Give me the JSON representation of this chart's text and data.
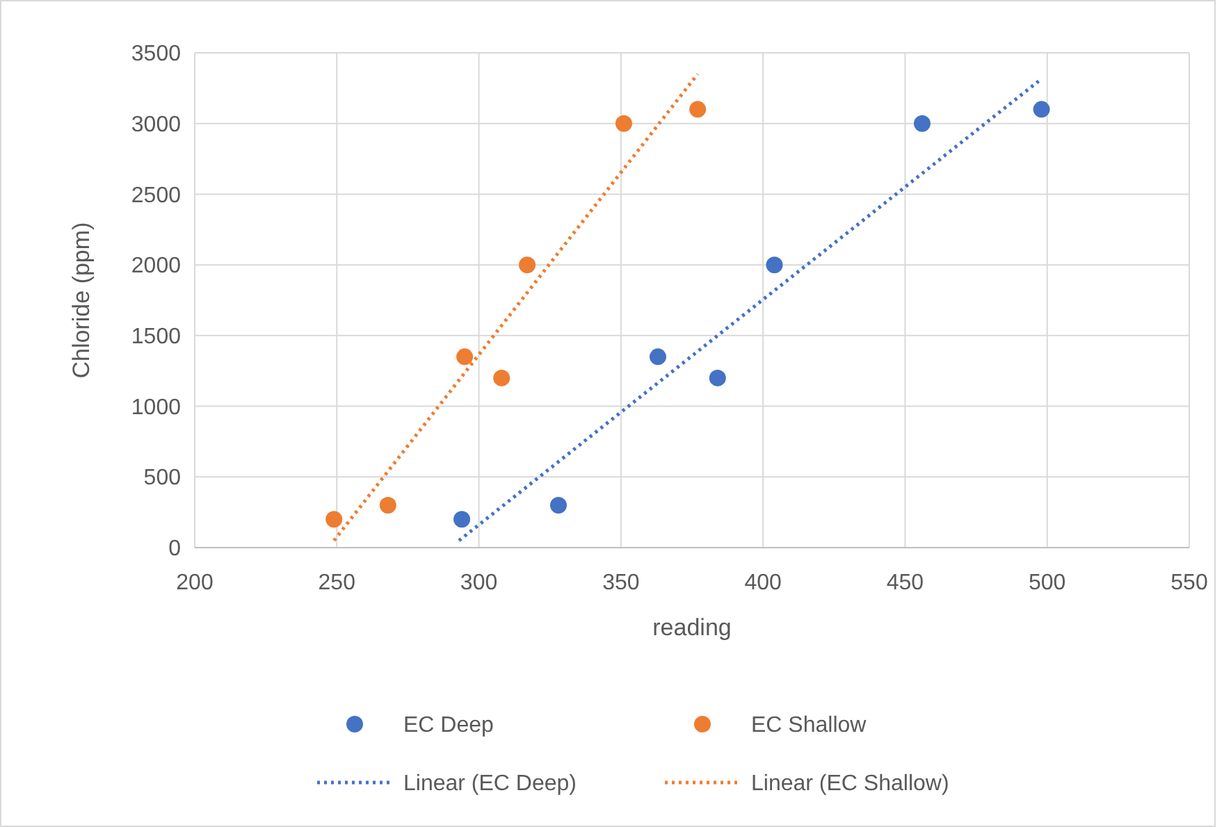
{
  "chart_data": {
    "type": "scatter",
    "xlabel": "reading",
    "ylabel": "Chloride (ppm)",
    "xlim": [
      200,
      550
    ],
    "ylim": [
      0,
      3500
    ],
    "xticks": [
      200,
      250,
      300,
      350,
      400,
      450,
      500,
      550
    ],
    "yticks": [
      0,
      500,
      1000,
      1500,
      2000,
      2500,
      3000,
      3500
    ],
    "grid": true,
    "legend": "bottom",
    "series": [
      {
        "name": "EC Deep",
        "marker": "circle",
        "color": "#4472c4",
        "x": [
          294,
          328,
          363,
          384,
          404,
          456,
          498
        ],
        "values": [
          200,
          300,
          1350,
          1200,
          2000,
          3000,
          3100
        ]
      },
      {
        "name": "EC Shallow",
        "marker": "circle",
        "color": "#ed7d31",
        "x": [
          249,
          268,
          295,
          308,
          317,
          351,
          377
        ],
        "values": [
          200,
          300,
          1350,
          1200,
          2000,
          3000,
          3100
        ]
      },
      {
        "name": "Linear (EC Deep)",
        "type": "line",
        "marker": "none",
        "line_style": "dotted",
        "color": "#4472c4",
        "x": [
          293,
          497
        ],
        "values": [
          50,
          3300
        ]
      },
      {
        "name": "Linear (EC Shallow)",
        "type": "line",
        "marker": "none",
        "line_style": "dotted",
        "color": "#ed7d31",
        "x": [
          249,
          377
        ],
        "values": [
          50,
          3350
        ]
      }
    ]
  }
}
